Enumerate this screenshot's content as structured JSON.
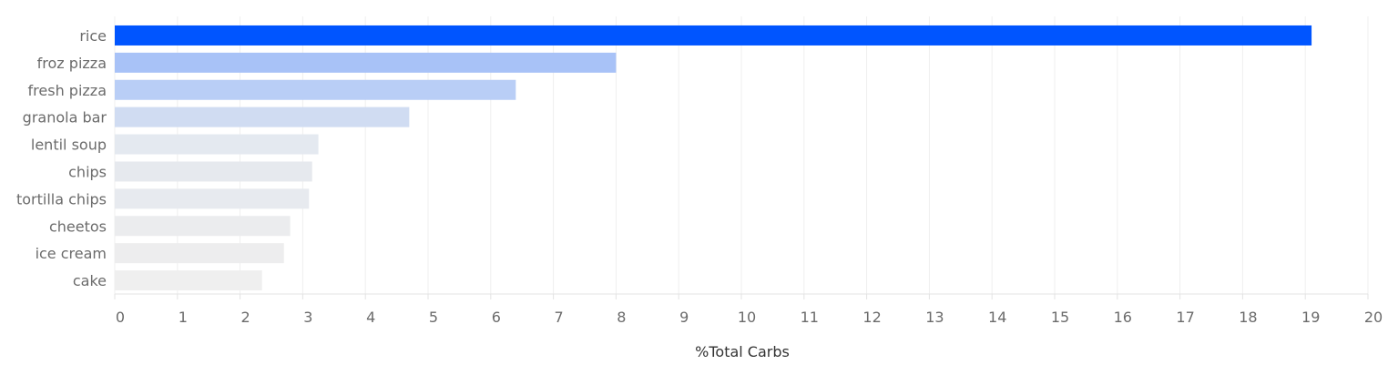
{
  "chart_data": {
    "type": "bar",
    "orientation": "horizontal",
    "categories": [
      "rice",
      "froz pizza",
      "fresh pizza",
      "granola bar",
      "lentil soup",
      "chips",
      "tortilla chips",
      "cheetos",
      "ice cream",
      "cake"
    ],
    "values": [
      19.1,
      8.0,
      6.4,
      4.7,
      3.25,
      3.15,
      3.1,
      2.8,
      2.7,
      2.35
    ],
    "bar_colors": [
      "#0055ff",
      "#a8c2f7",
      "#b9cef6",
      "#d0dcf2",
      "#e4e9f0",
      "#e6e9ee",
      "#e7eaef",
      "#ebecee",
      "#ededee",
      "#efefef"
    ],
    "title": "",
    "xlabel": "%Total Carbs",
    "ylabel": "",
    "xlim": [
      0,
      20
    ],
    "xticks": [
      "0",
      "1",
      "2",
      "3",
      "4",
      "5",
      "6",
      "7",
      "8",
      "9",
      "10",
      "11",
      "12",
      "13",
      "14",
      "15",
      "16",
      "17",
      "18",
      "19",
      "20"
    ],
    "grid": "vertical",
    "legend": "none",
    "gridline_color": "#efefef",
    "axis_color": "#e3e3e3"
  }
}
